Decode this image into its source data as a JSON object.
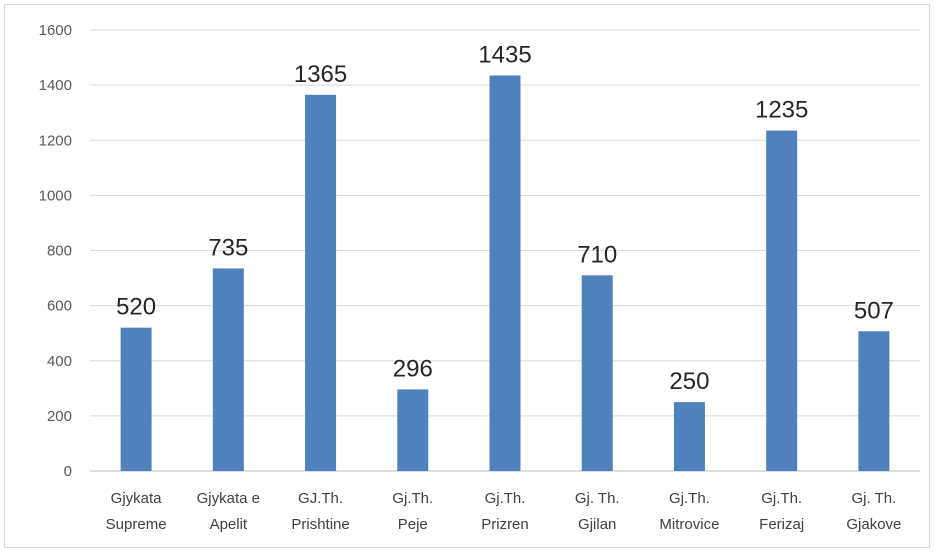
{
  "chart_data": {
    "type": "bar",
    "categories": [
      [
        "Gjykata",
        "Supreme"
      ],
      [
        "Gjykata e",
        "Apelit"
      ],
      [
        "GJ.Th.",
        "Prishtine"
      ],
      [
        "Gj.Th.",
        "Peje"
      ],
      [
        "Gj.Th.",
        "Prizren"
      ],
      [
        "Gj. Th.",
        "Gjilan"
      ],
      [
        "Gj.Th.",
        "Mitrovice"
      ],
      [
        "Gj.Th.",
        "Ferizaj"
      ],
      [
        "Gj. Th.",
        "Gjakove"
      ]
    ],
    "values": [
      520,
      735,
      1365,
      296,
      1435,
      710,
      250,
      1235,
      507
    ],
    "data_labels": [
      "520",
      "735",
      "1365",
      "296",
      "1435",
      "710",
      "250",
      "1235",
      "507"
    ],
    "yticks": [
      "0",
      "200",
      "400",
      "600",
      "800",
      "1000",
      "1200",
      "1400",
      "1600"
    ],
    "ylim": [
      0,
      1600
    ],
    "grid": true,
    "legend": "none",
    "bar_color": "#4f81bd"
  }
}
